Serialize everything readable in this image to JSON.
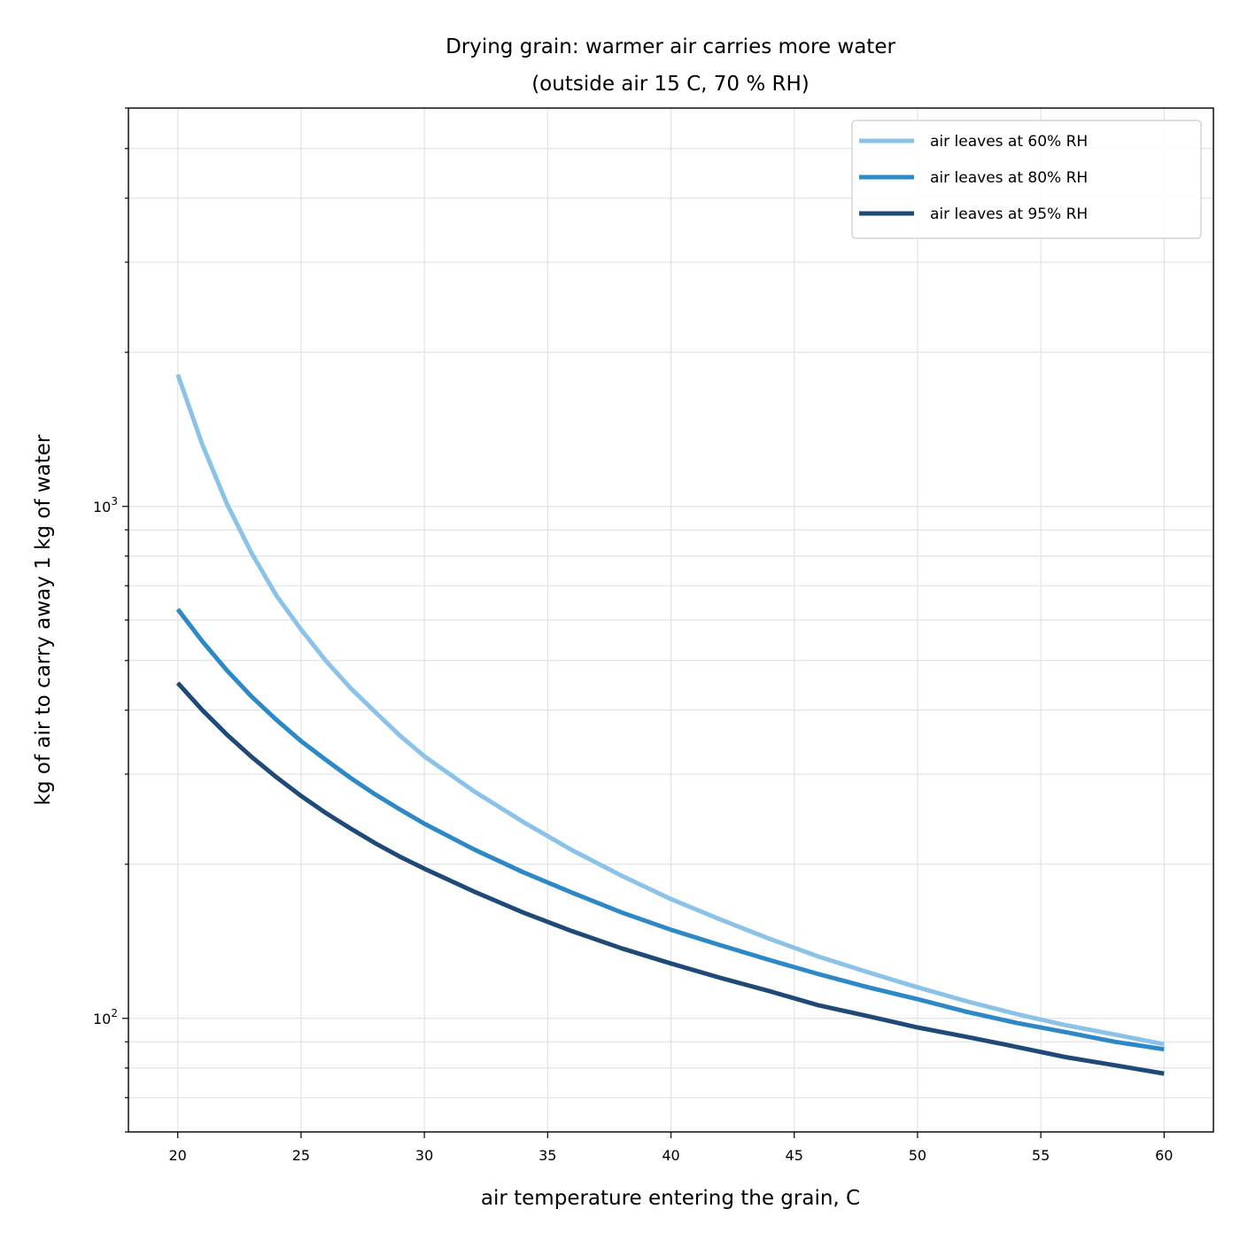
{
  "chart_data": {
    "type": "line",
    "title_line1": "Drying grain: warmer air carries more water",
    "title_line2": "(outside air 15 C, 70 % RH)",
    "xlabel": "air temperature entering the grain, C",
    "ylabel": "kg of air to carry away 1 kg of water",
    "xlim": [
      18,
      62
    ],
    "ylim": [
      60,
      6000
    ],
    "yscale": "log",
    "xticks": [
      20,
      25,
      30,
      35,
      40,
      45,
      50,
      55,
      60
    ],
    "xtick_labels": [
      "20",
      "25",
      "30",
      "35",
      "40",
      "45",
      "50",
      "55",
      "60"
    ],
    "yticks_major": [
      {
        "value": 100,
        "base": "10",
        "exp": "2"
      },
      {
        "value": 1000,
        "base": "10",
        "exp": "3"
      }
    ],
    "grid": true,
    "legend_position": "upper right",
    "x": [
      20,
      21,
      22,
      23,
      24,
      25,
      26,
      27,
      28,
      29,
      30,
      32,
      34,
      36,
      38,
      40,
      42,
      44,
      46,
      48,
      50,
      52,
      54,
      56,
      58,
      60
    ],
    "series": [
      {
        "name": "air leaves at 60% RH",
        "color": "#8bc2e8",
        "values": [
          1810,
          1320,
          1010,
          810,
          670,
          575,
          500,
          442,
          397,
          357,
          325,
          278,
          242,
          213,
          190,
          171,
          156,
          143,
          132,
          123,
          115,
          108,
          102,
          97,
          93,
          89
        ]
      },
      {
        "name": "air leaves at 80% RH",
        "color": "#2c88c7",
        "values": [
          630,
          545,
          478,
          425,
          383,
          348,
          320,
          295,
          274,
          256,
          240,
          214,
          193,
          176,
          161,
          149,
          139,
          130,
          122,
          115,
          109,
          103,
          98,
          94,
          90,
          87
        ]
      },
      {
        "name": "air leaves at 95% RH",
        "color": "#1f4a78",
        "values": [
          452,
          400,
          358,
          324,
          296,
          272,
          252,
          235,
          220,
          207,
          196,
          177,
          161,
          148,
          137,
          128,
          120,
          113,
          106,
          101,
          96,
          92,
          88,
          84,
          81,
          78
        ]
      }
    ]
  }
}
